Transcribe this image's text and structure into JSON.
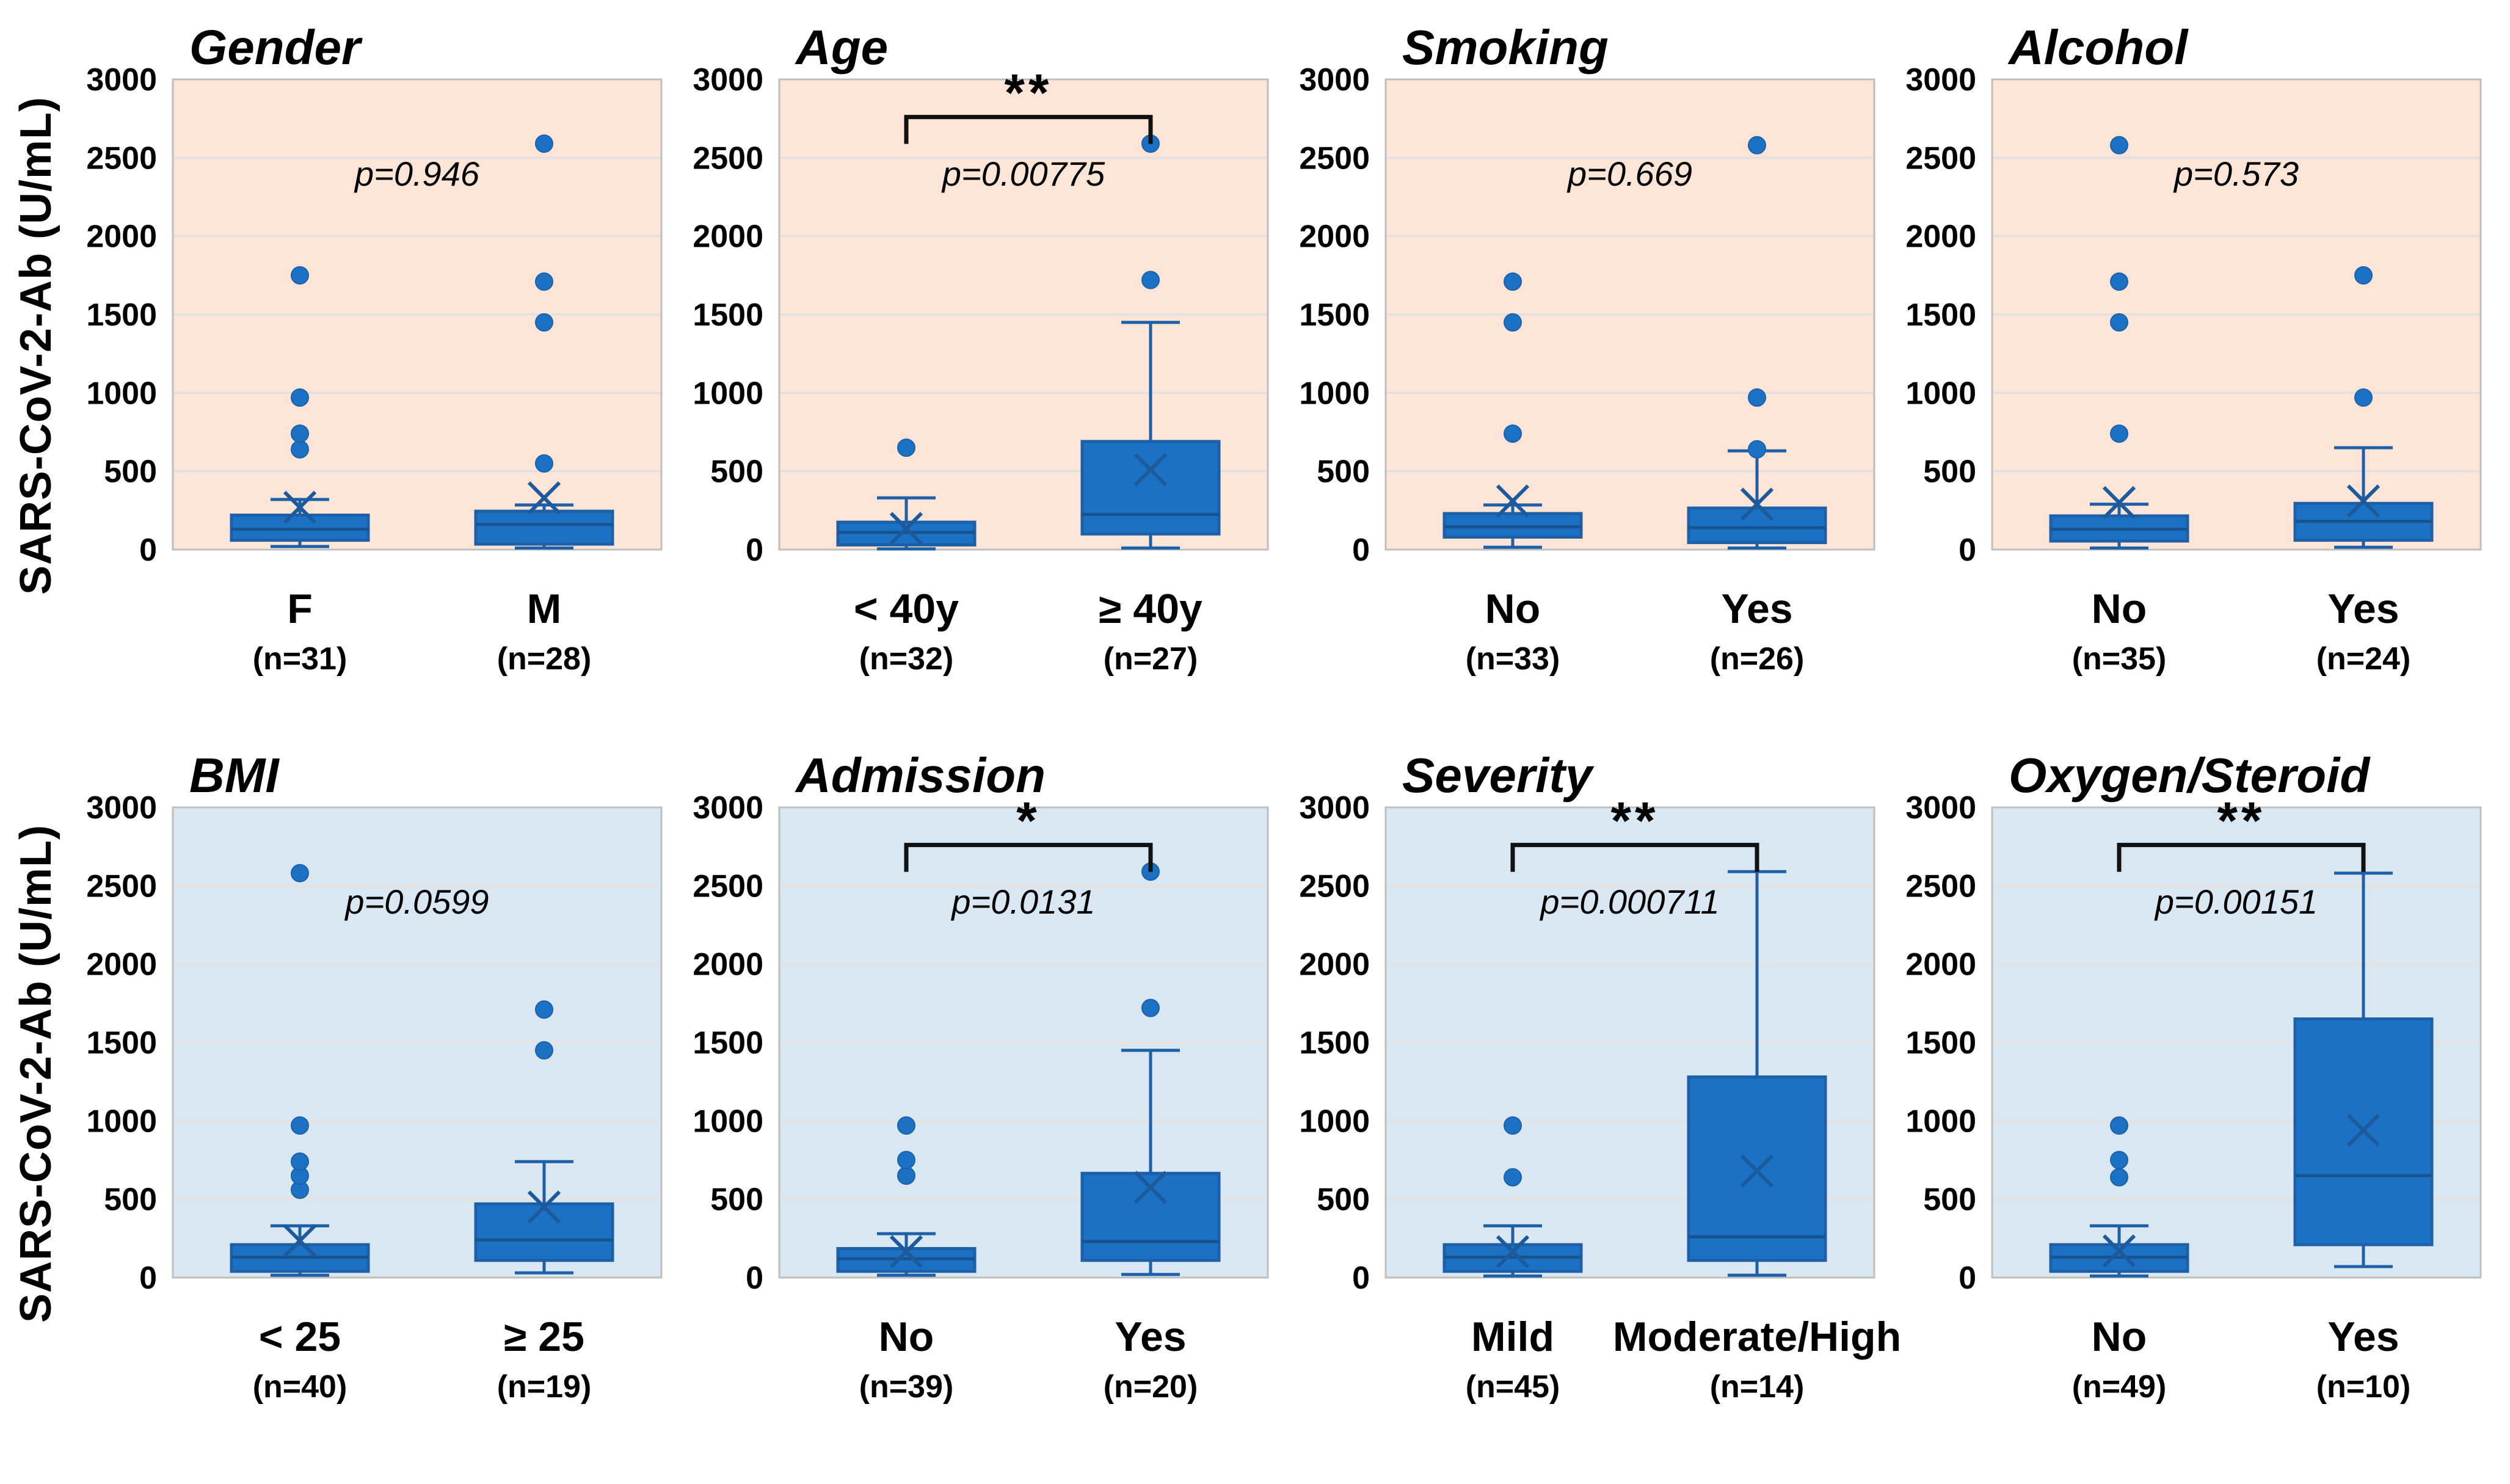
{
  "figure": {
    "ylabel": "SARS-CoV-2-Ab (U/mL)",
    "colors": {
      "box_fill": "#1b72c4",
      "box_stroke": "#1e60a8",
      "median_stroke": "#16538f",
      "mean_stroke": "#1c5a9c",
      "outlier_fill": "#1b72c4",
      "row1_bg": "#fce4d6",
      "row2_bg": "#d9e7f3",
      "row1_grid": "#dcdfe4",
      "row2_grid": "#e9e2dc",
      "plot_border": "#bfbfbf",
      "text": "#000000",
      "bracket": "#111111"
    }
  },
  "chart_data": [
    {
      "type": "box",
      "row": 1,
      "title": "Gender",
      "p_label": "p=0.946",
      "significance": "",
      "ylim": [
        0,
        3000
      ],
      "yticks": [
        0,
        500,
        1000,
        1500,
        2000,
        2500,
        3000
      ],
      "groups": [
        {
          "label": "F",
          "n_label": "(n=31)",
          "whisker_low": 20,
          "q1": 60,
          "median": 130,
          "q3": 220,
          "whisker_high": 320,
          "mean": 270,
          "outliers": [
            640,
            740,
            970,
            1750
          ]
        },
        {
          "label": "M",
          "n_label": "(n=28)",
          "whisker_low": 10,
          "q1": 35,
          "median": 160,
          "q3": 245,
          "whisker_high": 285,
          "mean": 330,
          "outliers": [
            550,
            1450,
            1710,
            2590
          ]
        }
      ]
    },
    {
      "type": "box",
      "row": 1,
      "title": "Age",
      "p_label": "p=0.00775",
      "significance": "**",
      "ylim": [
        0,
        3000
      ],
      "yticks": [
        0,
        500,
        1000,
        1500,
        2000,
        2500,
        3000
      ],
      "groups": [
        {
          "label": "< 40y",
          "n_label": "(n=32)",
          "whisker_low": 5,
          "q1": 30,
          "median": 110,
          "q3": 175,
          "whisker_high": 330,
          "mean": 135,
          "outliers": [
            650
          ]
        },
        {
          "label": "≥ 40y",
          "n_label": "(n=27)",
          "whisker_low": 10,
          "q1": 100,
          "median": 225,
          "q3": 690,
          "whisker_high": 1450,
          "mean": 510,
          "outliers": [
            1720,
            2590
          ]
        }
      ]
    },
    {
      "type": "box",
      "row": 1,
      "title": "Smoking",
      "p_label": "p=0.669",
      "significance": "",
      "ylim": [
        0,
        3000
      ],
      "yticks": [
        0,
        500,
        1000,
        1500,
        2000,
        2500,
        3000
      ],
      "groups": [
        {
          "label": "No",
          "n_label": "(n=33)",
          "whisker_low": 15,
          "q1": 80,
          "median": 145,
          "q3": 230,
          "whisker_high": 285,
          "mean": 310,
          "outliers": [
            740,
            1450,
            1710
          ]
        },
        {
          "label": "Yes",
          "n_label": "(n=26)",
          "whisker_low": 10,
          "q1": 45,
          "median": 140,
          "q3": 265,
          "whisker_high": 630,
          "mean": 290,
          "outliers": [
            640,
            970,
            2580
          ]
        }
      ]
    },
    {
      "type": "box",
      "row": 1,
      "title": "Alcohol",
      "p_label": "p=0.573",
      "significance": "",
      "ylim": [
        0,
        3000
      ],
      "yticks": [
        0,
        500,
        1000,
        1500,
        2000,
        2500,
        3000
      ],
      "groups": [
        {
          "label": "No",
          "n_label": "(n=35)",
          "whisker_low": 10,
          "q1": 55,
          "median": 130,
          "q3": 215,
          "whisker_high": 290,
          "mean": 300,
          "outliers": [
            740,
            1450,
            1710,
            2580
          ]
        },
        {
          "label": "Yes",
          "n_label": "(n=24)",
          "whisker_low": 15,
          "q1": 60,
          "median": 180,
          "q3": 295,
          "whisker_high": 650,
          "mean": 310,
          "outliers": [
            970,
            1750
          ]
        }
      ]
    },
    {
      "type": "box",
      "row": 2,
      "title": "BMI",
      "p_label": "p=0.0599",
      "significance": "",
      "ylim": [
        0,
        3000
      ],
      "yticks": [
        0,
        500,
        1000,
        1500,
        2000,
        2500,
        3000
      ],
      "groups": [
        {
          "label": "< 25",
          "n_label": "(n=40)",
          "whisker_low": 15,
          "q1": 40,
          "median": 130,
          "q3": 210,
          "whisker_high": 330,
          "mean": 235,
          "outliers": [
            560,
            650,
            740,
            970,
            2580
          ]
        },
        {
          "label": "≥ 25",
          "n_label": "(n=19)",
          "whisker_low": 30,
          "q1": 110,
          "median": 240,
          "q3": 470,
          "whisker_high": 740,
          "mean": 450,
          "outliers": [
            1450,
            1710
          ]
        }
      ]
    },
    {
      "type": "box",
      "row": 2,
      "title": "Admission",
      "p_label": "p=0.0131",
      "significance": "*",
      "ylim": [
        0,
        3000
      ],
      "yticks": [
        0,
        500,
        1000,
        1500,
        2000,
        2500,
        3000
      ],
      "groups": [
        {
          "label": "No",
          "n_label": "(n=39)",
          "whisker_low": 15,
          "q1": 40,
          "median": 120,
          "q3": 185,
          "whisker_high": 280,
          "mean": 165,
          "outliers": [
            650,
            750,
            970
          ]
        },
        {
          "label": "Yes",
          "n_label": "(n=20)",
          "whisker_low": 20,
          "q1": 110,
          "median": 230,
          "q3": 665,
          "whisker_high": 1450,
          "mean": 575,
          "outliers": [
            1720,
            2590
          ]
        }
      ]
    },
    {
      "type": "box",
      "row": 2,
      "title": "Severity",
      "p_label": "p=0.000711",
      "significance": "**",
      "ylim": [
        0,
        3000
      ],
      "yticks": [
        0,
        500,
        1000,
        1500,
        2000,
        2500,
        3000
      ],
      "groups": [
        {
          "label": "Mild",
          "n_label": "(n=45)",
          "whisker_low": 10,
          "q1": 40,
          "median": 130,
          "q3": 210,
          "whisker_high": 330,
          "mean": 165,
          "outliers": [
            640,
            970
          ]
        },
        {
          "label": "Moderate/High",
          "n_label": "(n=14)",
          "whisker_low": 15,
          "q1": 110,
          "median": 260,
          "q3": 1280,
          "whisker_high": 2590,
          "mean": 680,
          "outliers": []
        }
      ]
    },
    {
      "type": "box",
      "row": 2,
      "title": "Oxygen/Steroid",
      "p_label": "p=0.00151",
      "significance": "**",
      "ylim": [
        0,
        3000
      ],
      "yticks": [
        0,
        500,
        1000,
        1500,
        2000,
        2500,
        3000
      ],
      "groups": [
        {
          "label": "No",
          "n_label": "(n=49)",
          "whisker_low": 10,
          "q1": 40,
          "median": 130,
          "q3": 210,
          "whisker_high": 330,
          "mean": 170,
          "outliers": [
            640,
            750,
            970
          ]
        },
        {
          "label": "Yes",
          "n_label": "(n=10)",
          "whisker_low": 70,
          "q1": 210,
          "median": 650,
          "q3": 1650,
          "whisker_high": 2580,
          "mean": 940,
          "outliers": []
        }
      ]
    }
  ]
}
